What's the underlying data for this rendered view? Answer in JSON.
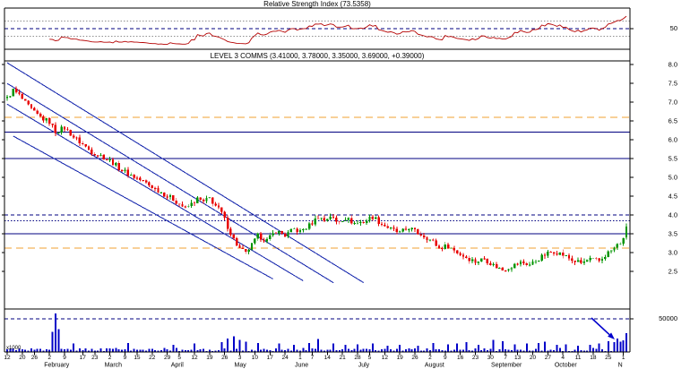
{
  "colors": {
    "background": "#ffffff",
    "up": "#009400",
    "down": "#e80000",
    "rsi_line": "#b40000",
    "volume_bar": "#0000c8",
    "trendline": "#2030b0",
    "hline_navy": "#000080",
    "hline_orange": "#f0a030",
    "border": "#000000",
    "grid_dot": "#909090",
    "arrow": "#0000cc"
  },
  "indicator": {
    "name": "Relative Strength Index",
    "value": "73.5358",
    "title_full": "Relative Strength Index (73.5358)",
    "scale_label": "50"
  },
  "security": {
    "name": "LEVEL 3 COMMS",
    "open": "3.41000",
    "high": "3.78000",
    "low": "3.35000",
    "close": "3.69000",
    "change": "+0.39000",
    "title_full": "LEVEL 3 COMMS (3.41000, 3.78000, 3.35000, 3.69000, +0.39000)"
  },
  "chart_data": {
    "type": "candlestick",
    "panels": [
      "rsi",
      "price",
      "volume"
    ],
    "title": "LEVEL 3 COMMS (3.41000, 3.78000, 3.35000, 3.69000, +0.39000)",
    "total_days": 206,
    "price_axis": {
      "min": 1.5,
      "max": 8.1,
      "tick_values": [
        8.0,
        7.5,
        7.0,
        6.5,
        6.0,
        5.5,
        5.0,
        4.5,
        4.0,
        3.5,
        3.0,
        2.5
      ],
      "tick_labels": [
        "8.0",
        "7.5",
        "7.0",
        "6.5",
        "6.0",
        "5.5",
        "5.0",
        "4.5",
        "4.0",
        "3.5",
        "3.0",
        "2.5"
      ]
    },
    "x_axis": {
      "day_ticks": [
        {
          "label": "12",
          "day": 0
        },
        {
          "label": "20",
          "day": 5
        },
        {
          "label": "26",
          "day": 9
        },
        {
          "label": "2",
          "day": 14
        },
        {
          "label": "9",
          "day": 19
        },
        {
          "label": "17",
          "day": 25
        },
        {
          "label": "23",
          "day": 29
        },
        {
          "label": "2",
          "day": 34
        },
        {
          "label": "9",
          "day": 39
        },
        {
          "label": "15",
          "day": 43
        },
        {
          "label": "22",
          "day": 48
        },
        {
          "label": "29",
          "day": 53
        },
        {
          "label": "5",
          "day": 57
        },
        {
          "label": "12",
          "day": 62
        },
        {
          "label": "19",
          "day": 67
        },
        {
          "label": "26",
          "day": 72
        },
        {
          "label": "3",
          "day": 77
        },
        {
          "label": "10",
          "day": 82
        },
        {
          "label": "17",
          "day": 87
        },
        {
          "label": "24",
          "day": 92
        },
        {
          "label": "1",
          "day": 97
        },
        {
          "label": "7",
          "day": 101
        },
        {
          "label": "14",
          "day": 106
        },
        {
          "label": "21",
          "day": 111
        },
        {
          "label": "28",
          "day": 116
        },
        {
          "label": "5",
          "day": 120
        },
        {
          "label": "12",
          "day": 125
        },
        {
          "label": "19",
          "day": 130
        },
        {
          "label": "26",
          "day": 135
        },
        {
          "label": "2",
          "day": 140
        },
        {
          "label": "9",
          "day": 145
        },
        {
          "label": "16",
          "day": 150
        },
        {
          "label": "23",
          "day": 155
        },
        {
          "label": "30",
          "day": 160
        },
        {
          "label": "7",
          "day": 165
        },
        {
          "label": "13",
          "day": 169
        },
        {
          "label": "20",
          "day": 174
        },
        {
          "label": "27",
          "day": 179
        },
        {
          "label": "4",
          "day": 184
        },
        {
          "label": "11",
          "day": 189
        },
        {
          "label": "18",
          "day": 194
        },
        {
          "label": "25",
          "day": 199
        },
        {
          "label": "1",
          "day": 204
        }
      ],
      "months": [
        {
          "label": "February",
          "day": 14
        },
        {
          "label": "March",
          "day": 34
        },
        {
          "label": "April",
          "day": 56
        },
        {
          "label": "May",
          "day": 77
        },
        {
          "label": "June",
          "day": 97
        },
        {
          "label": "July",
          "day": 118
        },
        {
          "label": "August",
          "day": 140
        },
        {
          "label": "September",
          "day": 162
        },
        {
          "label": "October",
          "day": 183
        },
        {
          "label": "N",
          "day": 204
        }
      ]
    },
    "price_anchors": [
      [
        0,
        7.1
      ],
      [
        2,
        7.32
      ],
      [
        4,
        7.18
      ],
      [
        6,
        6.98
      ],
      [
        9,
        6.72
      ],
      [
        12,
        6.55
      ],
      [
        14,
        6.48
      ],
      [
        16,
        6.22
      ],
      [
        19,
        6.32
      ],
      [
        22,
        6.08
      ],
      [
        25,
        5.88
      ],
      [
        28,
        5.68
      ],
      [
        31,
        5.58
      ],
      [
        34,
        5.45
      ],
      [
        37,
        5.25
      ],
      [
        40,
        5.1
      ],
      [
        43,
        4.98
      ],
      [
        46,
        4.85
      ],
      [
        49,
        4.7
      ],
      [
        52,
        4.55
      ],
      [
        55,
        4.42
      ],
      [
        57,
        4.3
      ],
      [
        59,
        4.18
      ],
      [
        61,
        4.3
      ],
      [
        63,
        4.42
      ],
      [
        65,
        4.35
      ],
      [
        67,
        4.45
      ],
      [
        69,
        4.25
      ],
      [
        71,
        4.05
      ],
      [
        73,
        3.7
      ],
      [
        75,
        3.35
      ],
      [
        77,
        3.1
      ],
      [
        79,
        2.98
      ],
      [
        81,
        3.2
      ],
      [
        83,
        3.45
      ],
      [
        86,
        3.32
      ],
      [
        89,
        3.58
      ],
      [
        92,
        3.46
      ],
      [
        95,
        3.62
      ],
      [
        97,
        3.56
      ],
      [
        100,
        3.72
      ],
      [
        103,
        3.96
      ],
      [
        105,
        3.86
      ],
      [
        107,
        3.98
      ],
      [
        109,
        3.82
      ],
      [
        112,
        3.92
      ],
      [
        115,
        3.78
      ],
      [
        118,
        3.82
      ],
      [
        121,
        3.96
      ],
      [
        124,
        3.76
      ],
      [
        127,
        3.62
      ],
      [
        130,
        3.52
      ],
      [
        133,
        3.66
      ],
      [
        136,
        3.52
      ],
      [
        139,
        3.4
      ],
      [
        141,
        3.28
      ],
      [
        143,
        3.12
      ],
      [
        146,
        3.18
      ],
      [
        149,
        3.0
      ],
      [
        152,
        2.88
      ],
      [
        155,
        2.76
      ],
      [
        158,
        2.84
      ],
      [
        161,
        2.66
      ],
      [
        164,
        2.54
      ],
      [
        167,
        2.64
      ],
      [
        170,
        2.74
      ],
      [
        173,
        2.68
      ],
      [
        176,
        2.84
      ],
      [
        179,
        2.98
      ],
      [
        181,
        3.04
      ],
      [
        184,
        2.94
      ],
      [
        187,
        2.8
      ],
      [
        190,
        2.72
      ],
      [
        193,
        2.82
      ],
      [
        196,
        2.78
      ],
      [
        199,
        3.0
      ],
      [
        201,
        3.12
      ],
      [
        203,
        3.28
      ],
      [
        204,
        3.32
      ],
      [
        205,
        3.69
      ]
    ],
    "last_bar": {
      "open": 3.41,
      "high": 3.78,
      "low": 3.35,
      "close": 3.69,
      "change": 0.39
    },
    "trendlines": [
      [
        [
          0,
          8.05
        ],
        [
          118,
          2.2
        ]
      ],
      [
        [
          0,
          7.5
        ],
        [
          108,
          2.2
        ]
      ],
      [
        [
          0,
          6.95
        ],
        [
          98,
          2.25
        ]
      ],
      [
        [
          2,
          6.1
        ],
        [
          88,
          2.3
        ]
      ]
    ],
    "hlines": {
      "solid": [
        6.2,
        5.5,
        3.5
      ],
      "orange_dash": [
        6.6,
        3.12
      ],
      "navy_dash": [
        4.0
      ],
      "navy_dot": [
        3.85
      ]
    },
    "rsi": {
      "period": 14,
      "final_value": 73.5358,
      "dashed_level": 50,
      "dotted_levels": [
        70,
        30
      ],
      "label_level": "50"
    },
    "volume": {
      "max": 62000,
      "gridline": 50000,
      "gridline_label": "50000",
      "unit_label": "x1000",
      "base_min": 700,
      "base_max": 5300,
      "spikes": [
        [
          15,
          30000
        ],
        [
          16,
          58000
        ],
        [
          17,
          34000
        ],
        [
          22,
          12000
        ],
        [
          40,
          13000
        ],
        [
          55,
          10000
        ],
        [
          62,
          12000
        ],
        [
          71,
          14000
        ],
        [
          73,
          20000
        ],
        [
          75,
          23000
        ],
        [
          77,
          18000
        ],
        [
          79,
          15000
        ],
        [
          83,
          13000
        ],
        [
          90,
          12000
        ],
        [
          95,
          10000
        ],
        [
          100,
          13000
        ],
        [
          103,
          19000
        ],
        [
          108,
          12000
        ],
        [
          112,
          10000
        ],
        [
          116,
          11000
        ],
        [
          121,
          12000
        ],
        [
          126,
          9000
        ],
        [
          130,
          10000
        ],
        [
          136,
          9000
        ],
        [
          141,
          13000
        ],
        [
          146,
          11000
        ],
        [
          149,
          12000
        ],
        [
          152,
          14000
        ],
        [
          156,
          10000
        ],
        [
          161,
          18000
        ],
        [
          164,
          16000
        ],
        [
          168,
          11000
        ],
        [
          172,
          12000
        ],
        [
          176,
          13000
        ],
        [
          178,
          15000
        ],
        [
          182,
          10000
        ],
        [
          185,
          11000
        ],
        [
          189,
          9000
        ],
        [
          193,
          10000
        ],
        [
          196,
          12000
        ],
        [
          199,
          16000
        ],
        [
          201,
          14000
        ],
        [
          202,
          20000
        ],
        [
          203,
          15000
        ],
        [
          204,
          17000
        ],
        [
          205,
          28000
        ]
      ]
    },
    "annotation_arrow": {
      "color": "#0000cc",
      "location": "volume-panel-october",
      "direction": "down-right"
    }
  }
}
